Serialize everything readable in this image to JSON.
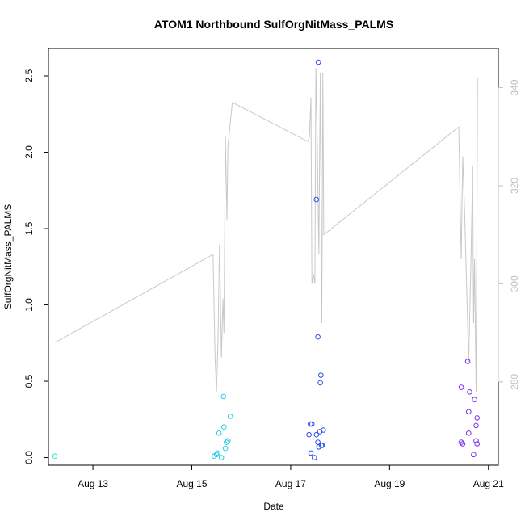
{
  "chart_data": {
    "type": "scatter",
    "title": "ATOM1 Northbound SulfOrgNitMass_PALMS",
    "xlabel": "Date",
    "ylabel": "SulfOrgNitMass_PALMS",
    "x_unit": "day of August",
    "xlim": [
      12.1,
      21.2
    ],
    "ylim": [
      -0.05,
      2.68
    ],
    "y_ticks": [
      0.0,
      0.5,
      1.0,
      1.5,
      2.0,
      2.5
    ],
    "y_tick_labels": [
      "0.0",
      "0.5",
      "1.0",
      "1.5",
      "2.0",
      "2.5"
    ],
    "x_ticks": [
      13,
      15,
      17,
      19,
      21
    ],
    "x_tick_labels": [
      "Aug 13",
      "Aug 15",
      "Aug 17",
      "Aug 19",
      "Aug 21"
    ],
    "right_axis": {
      "ylim": [
        263,
        348
      ],
      "ticks": [
        280,
        300,
        320,
        340
      ],
      "tick_labels": [
        "280",
        "300",
        "320",
        "340"
      ],
      "color": "#c0c0c0"
    },
    "grid": false,
    "legend": "none",
    "series": [
      {
        "type": "scatter",
        "marker": "open-circle",
        "points": [
          {
            "x": 12.23,
            "y": 0.01,
            "color": "#33e0c8"
          },
          {
            "x": 15.45,
            "y": 0.01,
            "color": "#22cce6"
          },
          {
            "x": 15.5,
            "y": 0.02,
            "color": "#22cce6"
          },
          {
            "x": 15.52,
            "y": 0.03,
            "color": "#22cce6"
          },
          {
            "x": 15.6,
            "y": 0.0,
            "color": "#22cce6"
          },
          {
            "x": 15.68,
            "y": 0.06,
            "color": "#22cce6"
          },
          {
            "x": 15.7,
            "y": 0.1,
            "color": "#22cce6"
          },
          {
            "x": 15.73,
            "y": 0.11,
            "color": "#22cce6"
          },
          {
            "x": 15.55,
            "y": 0.16,
            "color": "#22cce6"
          },
          {
            "x": 15.65,
            "y": 0.2,
            "color": "#22cce6"
          },
          {
            "x": 15.78,
            "y": 0.27,
            "color": "#22cce6"
          },
          {
            "x": 15.64,
            "y": 0.4,
            "color": "#22cce6"
          },
          {
            "x": 17.37,
            "y": 0.15,
            "color": "#2e4bf0"
          },
          {
            "x": 17.4,
            "y": 0.22,
            "color": "#2e4bf0"
          },
          {
            "x": 17.43,
            "y": 0.22,
            "color": "#2e4bf0"
          },
          {
            "x": 17.41,
            "y": 0.03,
            "color": "#2e4bf0"
          },
          {
            "x": 17.48,
            "y": 0.0,
            "color": "#2e4bf0"
          },
          {
            "x": 17.52,
            "y": 0.15,
            "color": "#2e4bf0"
          },
          {
            "x": 17.55,
            "y": 0.1,
            "color": "#2e4bf0"
          },
          {
            "x": 17.57,
            "y": 0.07,
            "color": "#2e4bf0"
          },
          {
            "x": 17.59,
            "y": 0.17,
            "color": "#2e4bf0"
          },
          {
            "x": 17.62,
            "y": 0.08,
            "color": "#2e4bf0"
          },
          {
            "x": 17.64,
            "y": 0.08,
            "color": "#2e4bf0"
          },
          {
            "x": 17.66,
            "y": 0.18,
            "color": "#2e4bf0"
          },
          {
            "x": 17.55,
            "y": 0.79,
            "color": "#2e4bf0"
          },
          {
            "x": 17.6,
            "y": 0.49,
            "color": "#2e4bf0"
          },
          {
            "x": 17.61,
            "y": 0.54,
            "color": "#2e4bf0"
          },
          {
            "x": 17.52,
            "y": 1.69,
            "color": "#2e4bf0"
          },
          {
            "x": 17.56,
            "y": 2.59,
            "color": "#2e4bf0"
          },
          {
            "x": 20.45,
            "y": 0.46,
            "color": "#7a2ee6"
          },
          {
            "x": 20.45,
            "y": 0.1,
            "color": "#7a2ee6"
          },
          {
            "x": 20.48,
            "y": 0.09,
            "color": "#7a2ee6"
          },
          {
            "x": 20.58,
            "y": 0.63,
            "color": "#7a2ee6"
          },
          {
            "x": 20.6,
            "y": 0.3,
            "color": "#7a2ee6"
          },
          {
            "x": 20.62,
            "y": 0.43,
            "color": "#7a2ee6"
          },
          {
            "x": 20.6,
            "y": 0.16,
            "color": "#7a2ee6"
          },
          {
            "x": 20.72,
            "y": 0.38,
            "color": "#7a2ee6"
          },
          {
            "x": 20.75,
            "y": 0.21,
            "color": "#7a2ee6"
          },
          {
            "x": 20.77,
            "y": 0.26,
            "color": "#7a2ee6"
          },
          {
            "x": 20.75,
            "y": 0.11,
            "color": "#7a2ee6"
          },
          {
            "x": 20.77,
            "y": 0.09,
            "color": "#7a2ee6"
          },
          {
            "x": 20.7,
            "y": 0.02,
            "color": "#7a2ee6"
          }
        ]
      },
      {
        "type": "line",
        "axis": "right",
        "color": "#c8c8c8",
        "points": [
          [
            12.23,
            288
          ],
          [
            15.43,
            306
          ],
          [
            15.47,
            285
          ],
          [
            15.5,
            278
          ],
          [
            15.53,
            288
          ],
          [
            15.56,
            308
          ],
          [
            15.6,
            285
          ],
          [
            15.63,
            297
          ],
          [
            15.65,
            290
          ],
          [
            15.68,
            330
          ],
          [
            15.71,
            313
          ],
          [
            15.73,
            328
          ],
          [
            15.82,
            337
          ],
          [
            17.35,
            329
          ],
          [
            17.38,
            330
          ],
          [
            17.41,
            338
          ],
          [
            17.43,
            300
          ],
          [
            17.46,
            302
          ],
          [
            17.49,
            300
          ],
          [
            17.51,
            344
          ],
          [
            17.54,
            327
          ],
          [
            17.57,
            306
          ],
          [
            17.6,
            343
          ],
          [
            17.63,
            292
          ],
          [
            17.65,
            343
          ],
          [
            17.67,
            310
          ],
          [
            20.4,
            332
          ],
          [
            20.45,
            305
          ],
          [
            20.48,
            326
          ],
          [
            20.52,
            314
          ],
          [
            20.6,
            284
          ],
          [
            20.65,
            306
          ],
          [
            20.68,
            324
          ],
          [
            20.7,
            292
          ],
          [
            20.72,
            305
          ],
          [
            20.75,
            278
          ],
          [
            20.78,
            342
          ]
        ]
      }
    ]
  }
}
